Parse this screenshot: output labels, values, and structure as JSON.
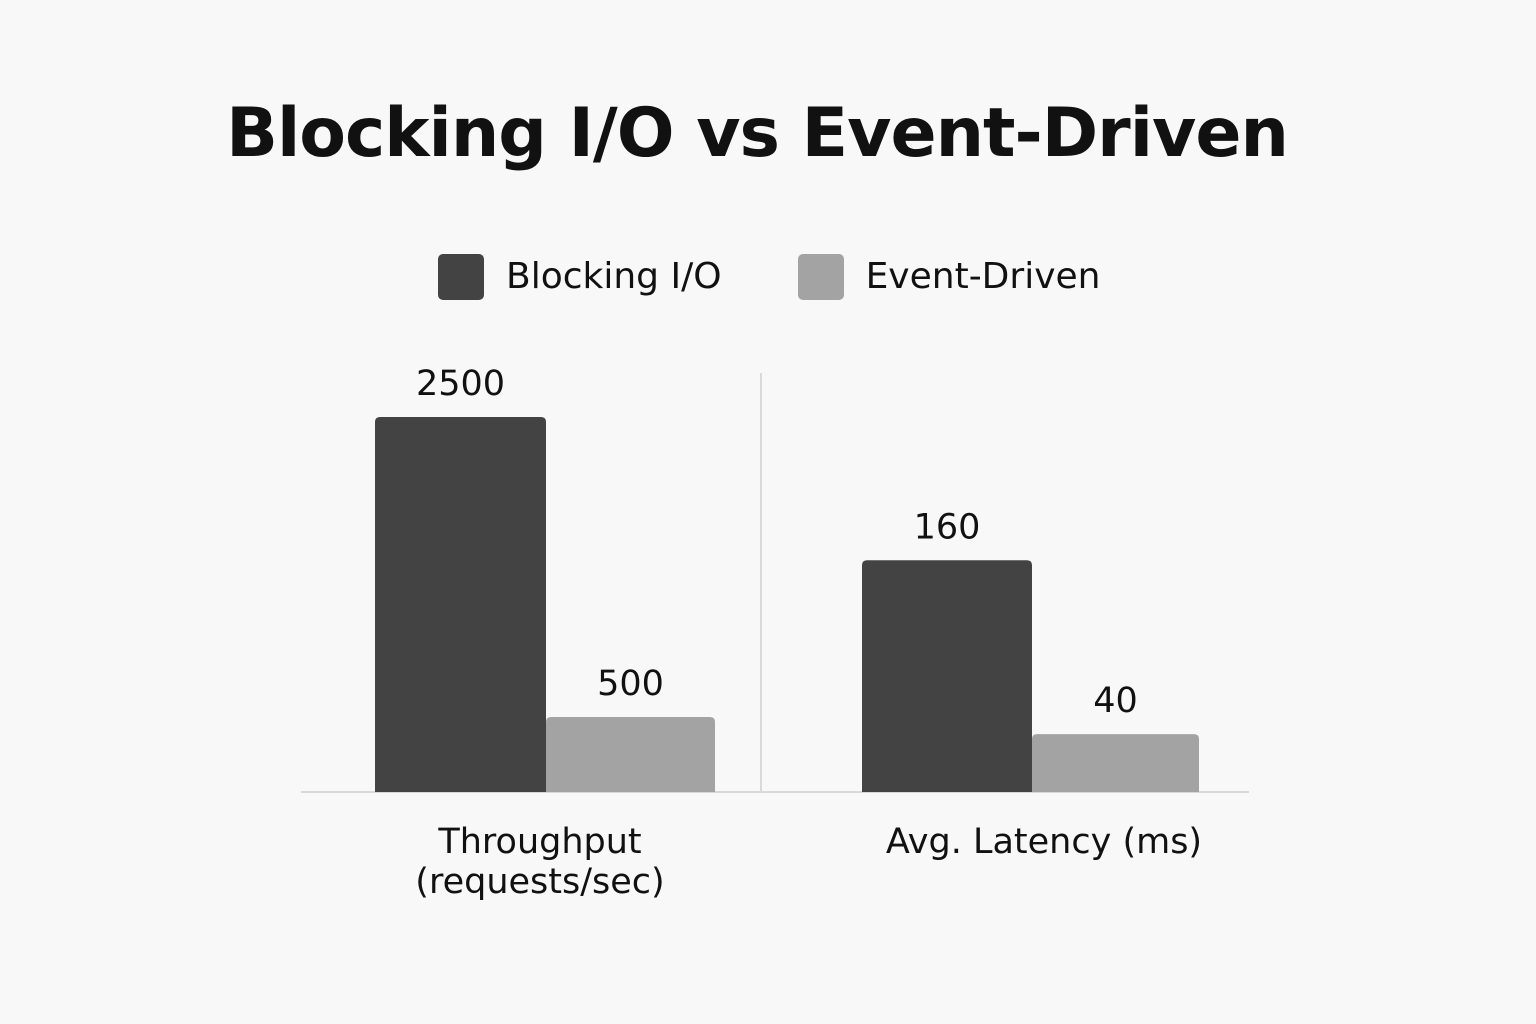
{
  "chart_data": {
    "type": "bar",
    "title": "Blocking I/O vs Event-Driven",
    "legend_position": "top-center",
    "grid": false,
    "series": [
      {
        "name": "Blocking I/O",
        "color": "#434343"
      },
      {
        "name": "Event-Driven",
        "color": "#a3a3a3"
      }
    ],
    "panels": [
      {
        "category": "Throughput\n(requests/sec)",
        "ylim": [
          0,
          2800
        ],
        "values": [
          2500,
          500
        ],
        "value_labels": [
          "2500",
          "500"
        ]
      },
      {
        "category": "Avg. Latency (ms)",
        "ylim": [
          0,
          290
        ],
        "values": [
          160,
          40
        ],
        "value_labels": [
          "160",
          "40"
        ]
      }
    ],
    "colors": {
      "background": "#f8f8f8",
      "axis": "#d9d9d9",
      "text": "#111111"
    }
  }
}
